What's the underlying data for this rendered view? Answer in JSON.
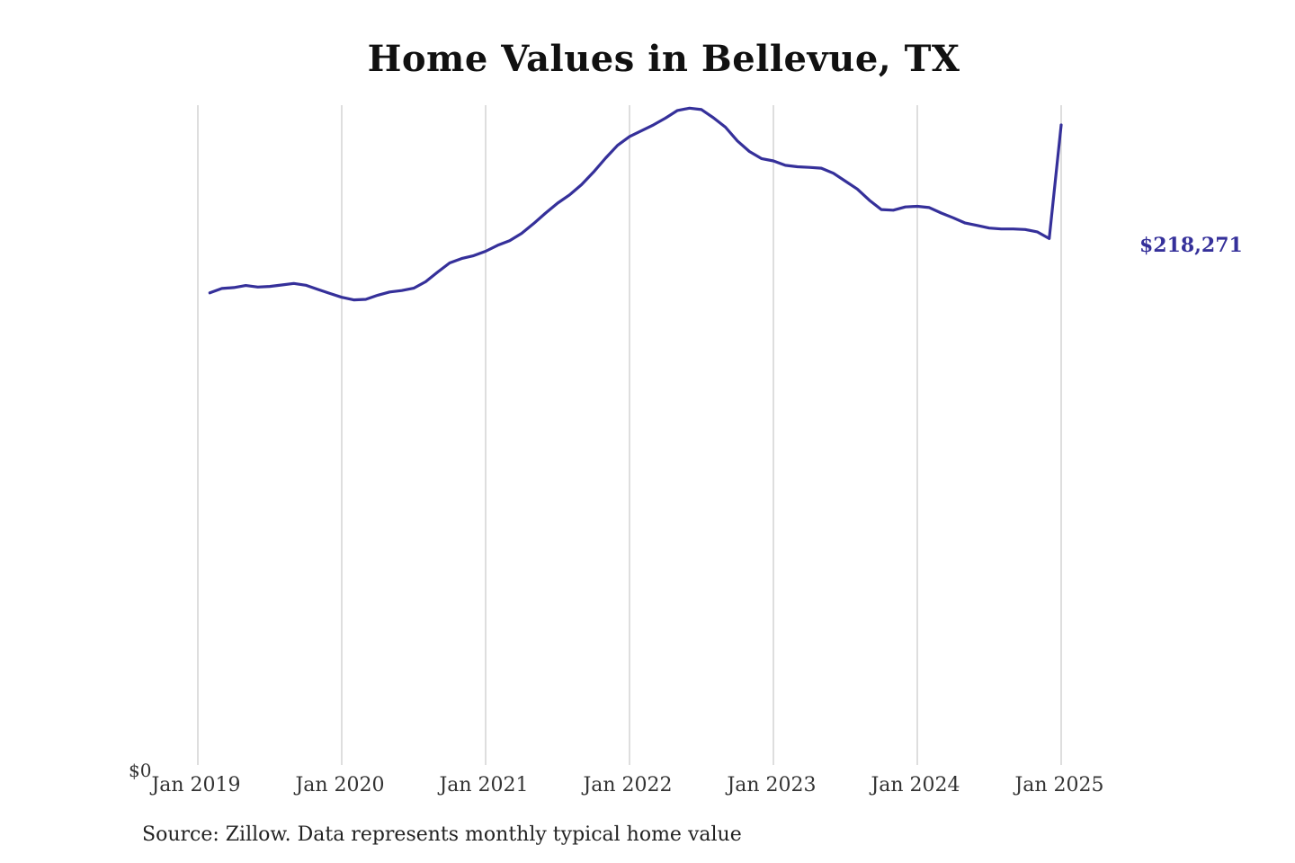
{
  "chart_data": {
    "type": "line",
    "title": "Home Values in Bellevue, TX",
    "source_note": "Source: Zillow. Data represents monthly typical home value",
    "series": [
      {
        "name": "",
        "color": "#35309a",
        "start_date": "2019-02",
        "values": [
          161000,
          162500,
          162800,
          163500,
          163000,
          163200,
          163700,
          164200,
          163600,
          162200,
          160800,
          159500,
          158600,
          158800,
          160200,
          161300,
          161800,
          162600,
          164800,
          168100,
          171200,
          172700,
          173700,
          175200,
          177200,
          178800,
          181300,
          184600,
          188200,
          191600,
          194400,
          197900,
          202200,
          206900,
          211300,
          214300,
          216300,
          218300,
          220600,
          223200,
          224000,
          223500,
          220700,
          217500,
          212800,
          209200,
          206800,
          206000,
          204500,
          204000,
          203800,
          203500,
          201800,
          199100,
          196400,
          192600,
          189400,
          189200,
          190300,
          190500,
          190100,
          188200,
          186600,
          184800,
          184000,
          183100,
          182800,
          182800,
          182600,
          181800,
          179500,
          218271
        ]
      }
    ],
    "end_label": "$218,271",
    "x_ticks": [
      "Jan 2019",
      "Jan 2020",
      "Jan 2021",
      "Jan 2022",
      "Jan 2023",
      "Jan 2024",
      "Jan 2025"
    ],
    "y_ticks": [
      "$0"
    ],
    "ylim": [
      0,
      225000
    ],
    "grid": "vertical"
  }
}
